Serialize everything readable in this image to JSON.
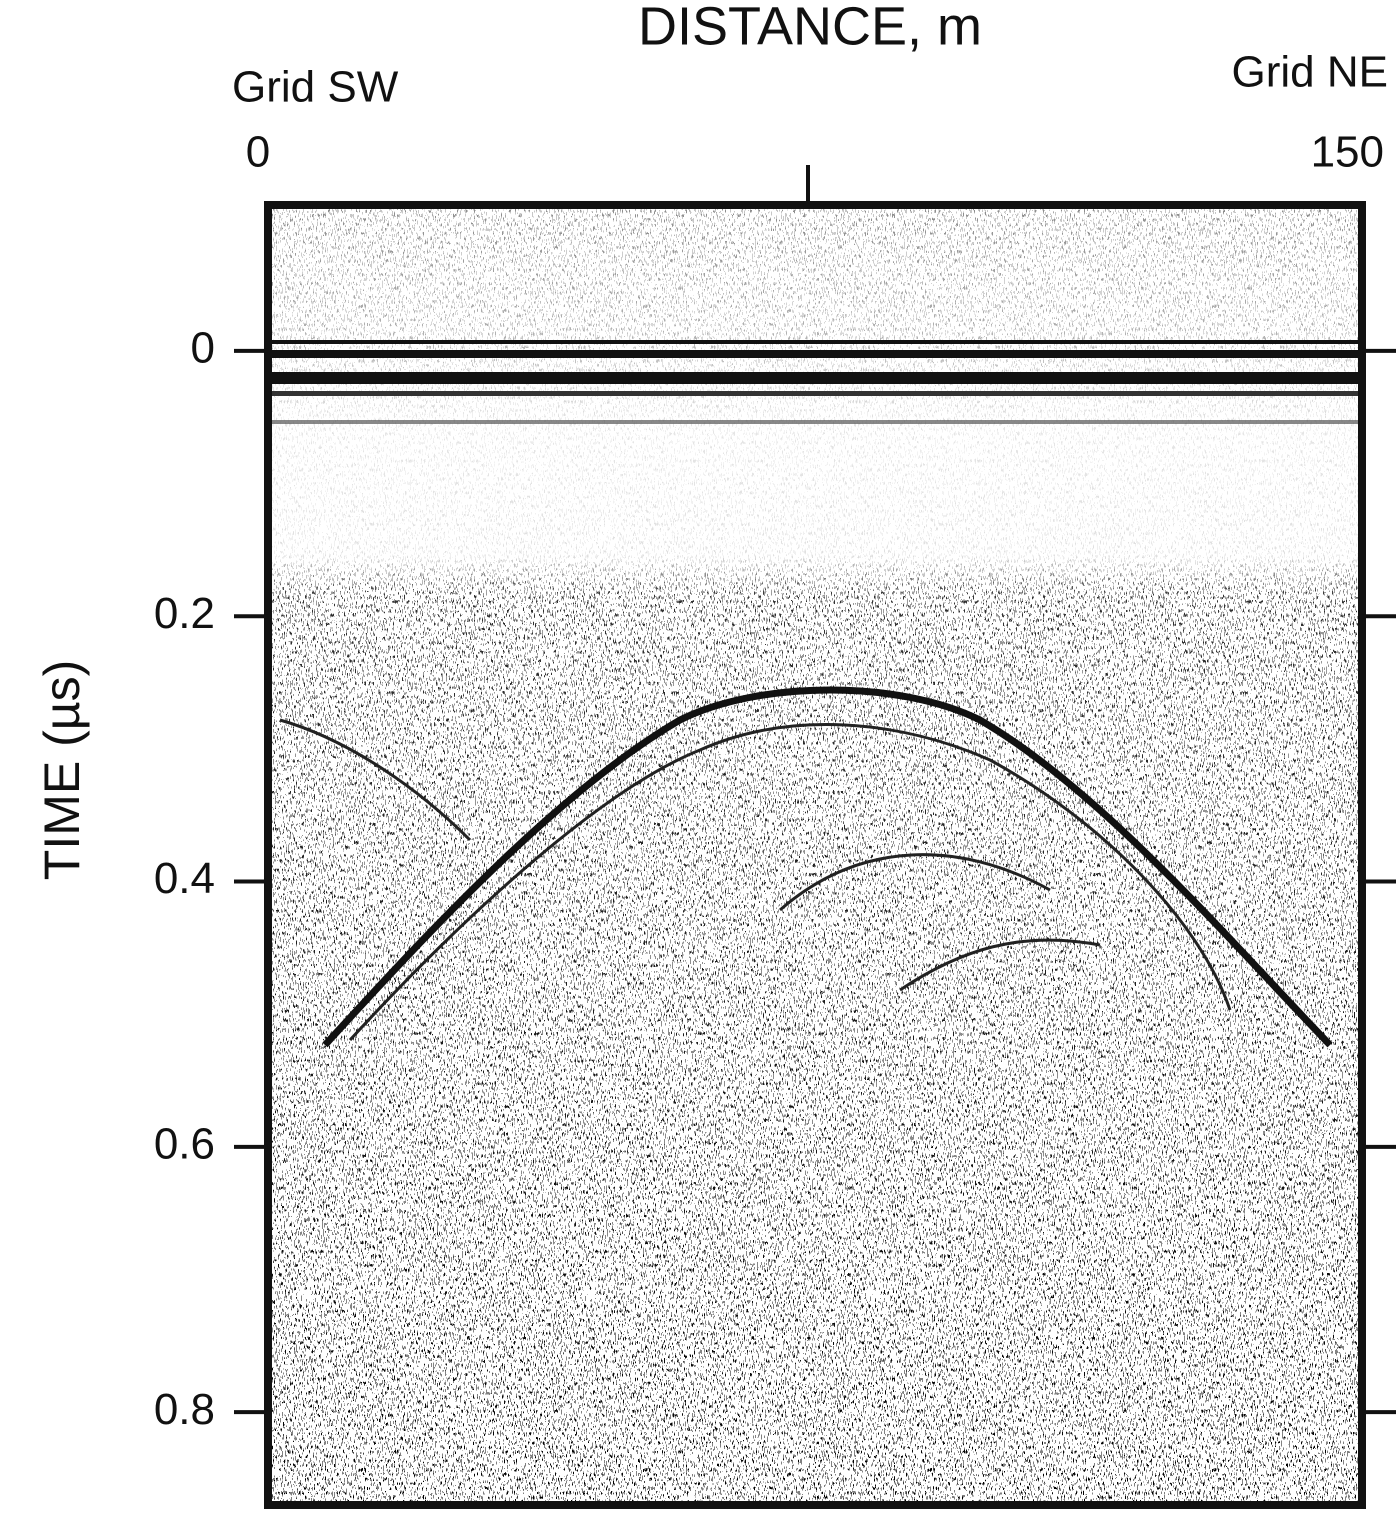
{
  "chart_data": {
    "type": "radargram",
    "title": "DISTANCE, m",
    "ylabel": "TIME (µs)",
    "left_label": "Grid SW",
    "right_label": "Grid NE",
    "xlim": [
      0,
      150
    ],
    "xticks": [
      0,
      150
    ],
    "ylim": [
      -0.11,
      0.87
    ],
    "yticks": [
      0,
      0.2,
      0.4,
      0.6,
      0.8
    ]
  }
}
